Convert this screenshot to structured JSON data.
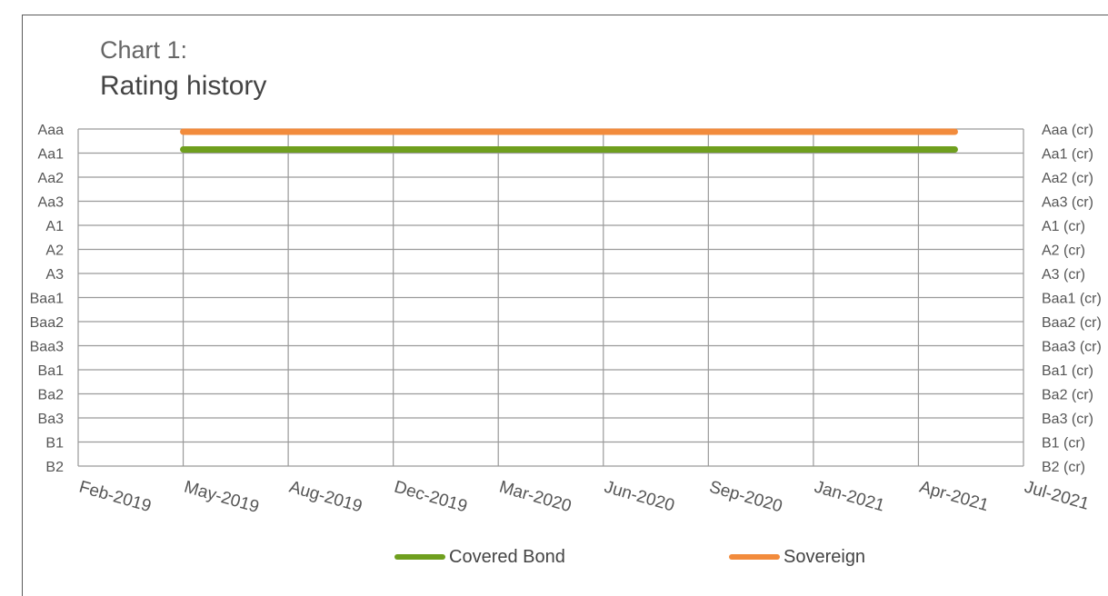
{
  "chart_data": {
    "type": "line",
    "title": "Chart 1:",
    "subtitle": "Rating history",
    "left_ticks": [
      "Aaa",
      "Aa1",
      "Aa2",
      "Aa3",
      "A1",
      "A2",
      "A3",
      "Baa1",
      "Baa2",
      "Baa3",
      "Ba1",
      "Ba2",
      "Ba3",
      "B1",
      "B2"
    ],
    "right_ticks": [
      "Aaa (cr)",
      "Aa1 (cr)",
      "Aa2 (cr)",
      "Aa3 (cr)",
      "A1 (cr)",
      "A2 (cr)",
      "A3 (cr)",
      "Baa1 (cr)",
      "Baa2 (cr)",
      "Baa3 (cr)",
      "Ba1 (cr)",
      "Ba2 (cr)",
      "Ba3 (cr)",
      "B1 (cr)",
      "B2 (cr)"
    ],
    "x_ticks": [
      "Feb-2019",
      "May-2019",
      "Aug-2019",
      "Dec-2019",
      "Mar-2020",
      "Jun-2020",
      "Sep-2020",
      "Jan-2021",
      "Apr-2021",
      "Jul-2021"
    ],
    "grid": true,
    "legend_position": "bottom",
    "series": [
      {
        "name": "Covered Bond",
        "color": "#6f9f1e",
        "x": [
          "May-2019",
          "Apr-2021"
        ],
        "y": [
          "Aa1",
          "Aa1"
        ]
      },
      {
        "name": "Sovereign",
        "color": "#f28b3c",
        "x": [
          "May-2019",
          "Apr-2021"
        ],
        "y": [
          "Aaa",
          "Aaa"
        ]
      }
    ]
  }
}
